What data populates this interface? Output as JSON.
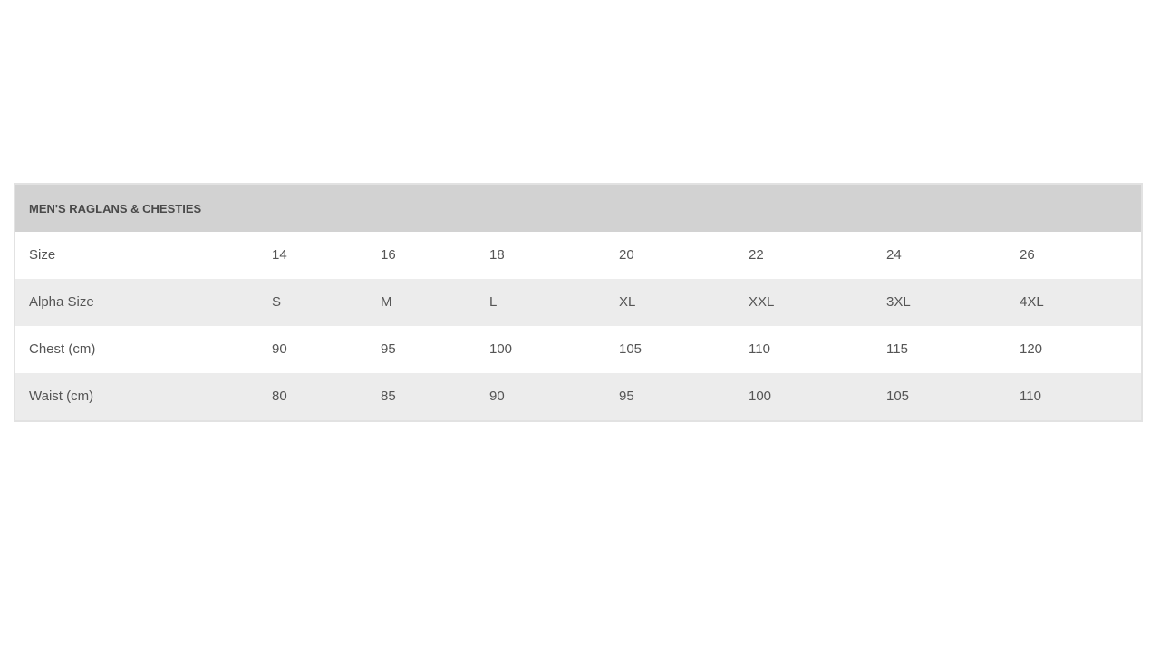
{
  "table": {
    "title": "MEN'S RAGLANS & CHESTIES",
    "rows": [
      {
        "label": "Size",
        "values": [
          "14",
          "16",
          "18",
          "20",
          "22",
          "24",
          "26"
        ]
      },
      {
        "label": "Alpha Size",
        "values": [
          "S",
          "M",
          "L",
          "XL",
          "XXL",
          "3XL",
          "4XL"
        ]
      },
      {
        "label": "Chest (cm)",
        "values": [
          "90",
          "95",
          "100",
          "105",
          "110",
          "115",
          "120"
        ]
      },
      {
        "label": "Waist (cm)",
        "values": [
          "80",
          "85",
          "90",
          "95",
          "100",
          "105",
          "110"
        ]
      }
    ]
  }
}
